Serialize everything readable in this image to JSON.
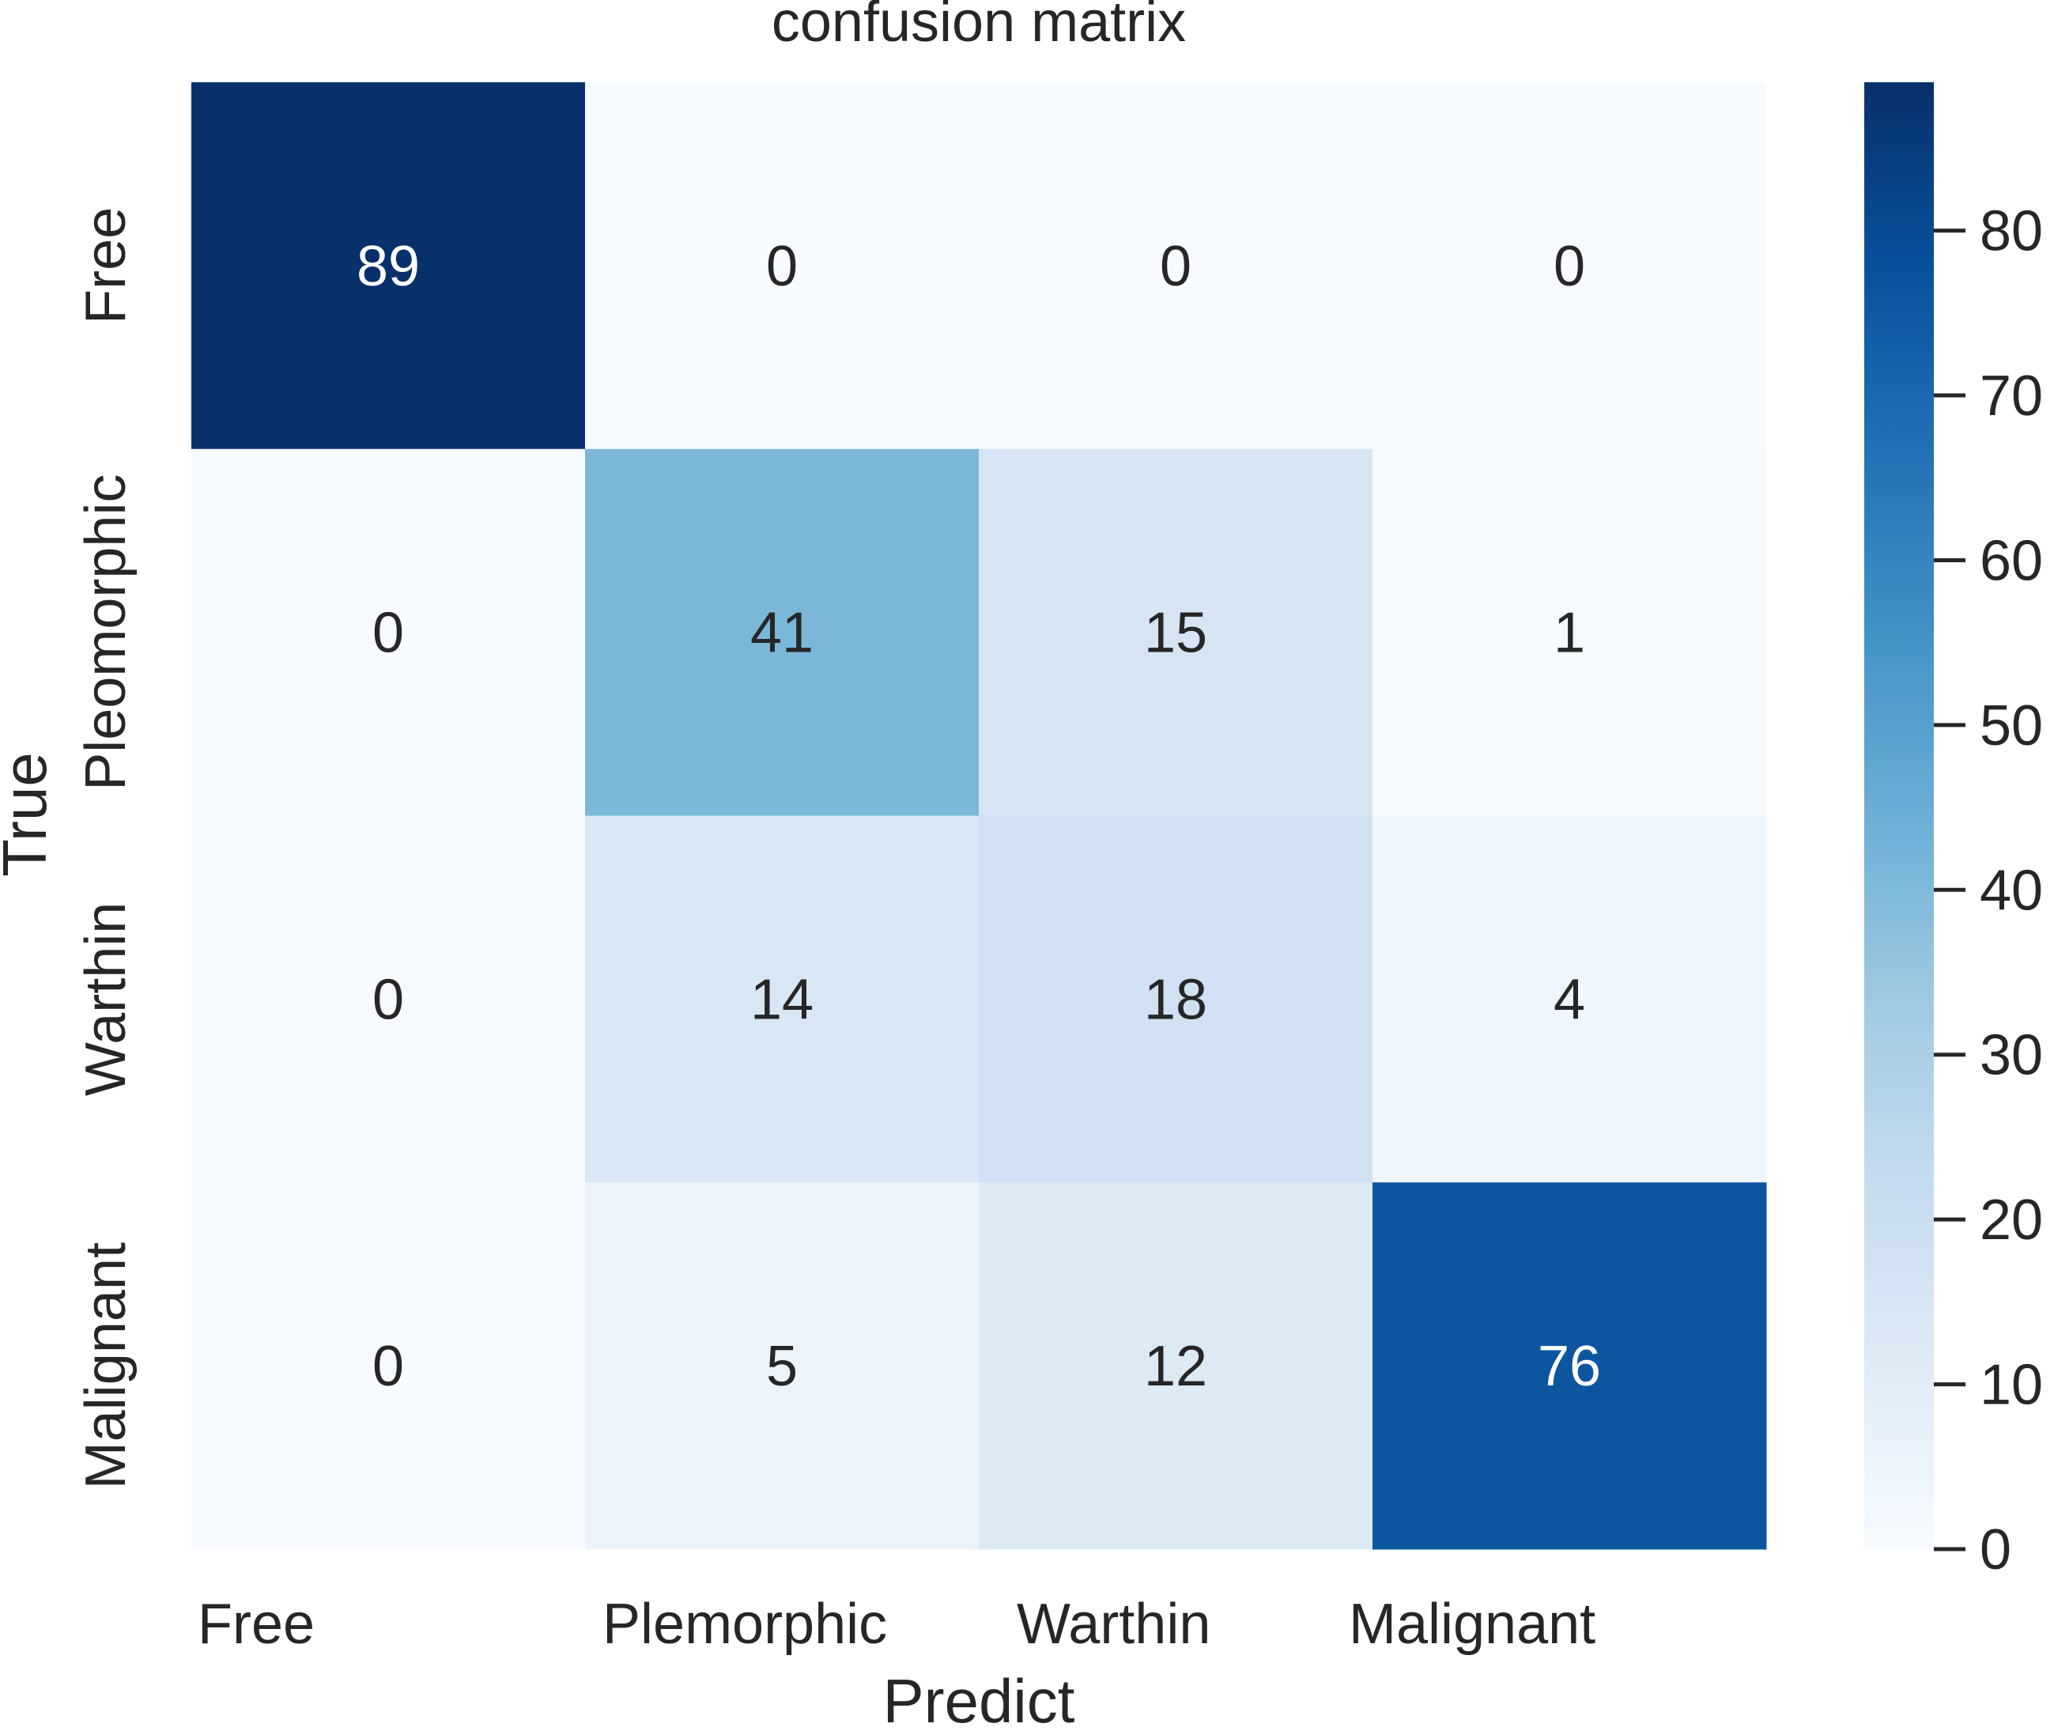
{
  "chart_data": {
    "type": "heatmap",
    "title": "confusion matrix",
    "xlabel": "Predict",
    "ylabel": "True",
    "x_categories": [
      "Free",
      "Plemorphic",
      "Warthin",
      "Malignant"
    ],
    "y_categories": [
      "Free",
      "Pleomorphic",
      "Warthin",
      "Malignant"
    ],
    "values": [
      [
        89,
        0,
        0,
        0
      ],
      [
        0,
        41,
        15,
        1
      ],
      [
        0,
        14,
        18,
        4
      ],
      [
        0,
        5,
        12,
        76
      ]
    ],
    "colormap": "Blues",
    "colorbar": {
      "min": 0,
      "max": 89,
      "ticks": [
        0,
        10,
        20,
        30,
        40,
        50,
        60,
        70,
        80
      ]
    },
    "annot": true,
    "grid": false,
    "legend": "colorbar-right"
  }
}
